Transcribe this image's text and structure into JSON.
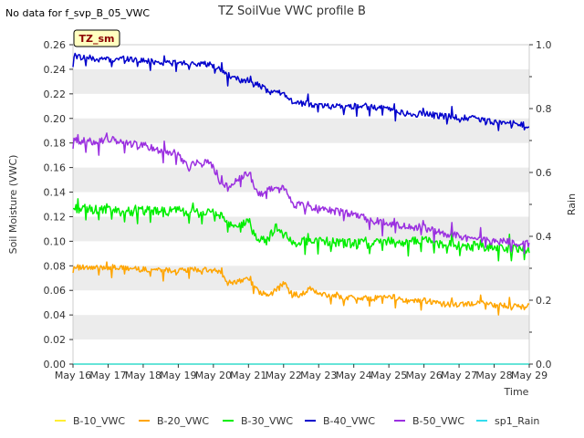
{
  "header": {
    "title": "TZ SoilVue VWC profile B",
    "no_data_note": "No data for f_svp_B_05_VWC",
    "site_badge": "TZ_sm"
  },
  "colors": {
    "B-10_VWC": "#ffee33",
    "B-20_VWC": "#ffa500",
    "B-30_VWC": "#00ee00",
    "B-40_VWC": "#0000cc",
    "B-50_VWC": "#9b30e0",
    "sp1_Rain": "#33ddee",
    "band": "#ececec",
    "badge_bg": "#ffffc0",
    "badge_text": "#8b0000"
  },
  "chart_data": {
    "type": "line",
    "title": "TZ SoilVue VWC profile B",
    "xlabel": "Time",
    "ylabel": "Soil Moisture (VWC)",
    "y2label": "Rain",
    "xlim": [
      0,
      13
    ],
    "ylim": [
      0.0,
      0.26
    ],
    "y2lim": [
      0.0,
      1.0
    ],
    "grid": "alternating horizontal bands",
    "legend_position": "bottom",
    "x_tick_labels": [
      "May 16",
      "May 17",
      "May 18",
      "May 19",
      "May 20",
      "May 21",
      "May 22",
      "May 23",
      "May 24",
      "May 25",
      "May 26",
      "May 27",
      "May 28",
      "May 29"
    ],
    "y_ticks": [
      0.0,
      0.02,
      0.04,
      0.06,
      0.08,
      0.1,
      0.12,
      0.14,
      0.16,
      0.18,
      0.2,
      0.22,
      0.24,
      0.26
    ],
    "y_tick_labels": [
      "0.00",
      "0.02",
      "0.04",
      "0.06",
      "0.08",
      "0.10",
      "0.12",
      "0.14",
      "0.16",
      "0.18",
      "0.20",
      "0.22",
      "0.24",
      "0.26"
    ],
    "y2_ticks": [
      0.0,
      0.2,
      0.4,
      0.6,
      0.8,
      1.0
    ],
    "y2_tick_labels": [
      "0.0",
      "0.2",
      "0.4",
      "0.6",
      "0.8",
      "1.0"
    ],
    "series": [
      {
        "name": "B-10_VWC",
        "axis": "left",
        "x": [
          0,
          13
        ],
        "y": [
          0.0,
          0.0
        ]
      },
      {
        "name": "B-20_VWC",
        "axis": "left",
        "x": [
          0,
          0.5,
          1,
          1.5,
          2,
          2.5,
          3,
          3.5,
          4,
          4.2,
          4.4,
          4.8,
          5,
          5.3,
          5.6,
          6,
          6.2,
          6.5,
          6.8,
          7,
          7.5,
          8,
          8.5,
          9,
          9.3,
          9.6,
          10,
          10.5,
          11,
          11.5,
          12,
          12.5,
          13
        ],
        "y": [
          0.079,
          0.078,
          0.079,
          0.078,
          0.077,
          0.077,
          0.076,
          0.077,
          0.076,
          0.075,
          0.066,
          0.068,
          0.07,
          0.058,
          0.056,
          0.066,
          0.058,
          0.056,
          0.062,
          0.057,
          0.055,
          0.054,
          0.053,
          0.056,
          0.053,
          0.051,
          0.052,
          0.049,
          0.048,
          0.05,
          0.048,
          0.047,
          0.047
        ]
      },
      {
        "name": "B-30_VWC",
        "axis": "left",
        "x": [
          0,
          0.5,
          1,
          1.5,
          2,
          2.5,
          3,
          3.5,
          4,
          4.3,
          4.6,
          5,
          5.2,
          5.5,
          5.8,
          6,
          6.3,
          6.6,
          7,
          7.5,
          8,
          8.5,
          9,
          9.5,
          10,
          10.5,
          11,
          11.5,
          12,
          12.5,
          13
        ],
        "y": [
          0.127,
          0.126,
          0.125,
          0.124,
          0.125,
          0.124,
          0.125,
          0.123,
          0.124,
          0.118,
          0.11,
          0.117,
          0.103,
          0.1,
          0.112,
          0.105,
          0.099,
          0.1,
          0.101,
          0.099,
          0.098,
          0.098,
          0.101,
          0.098,
          0.102,
          0.097,
          0.097,
          0.096,
          0.095,
          0.094,
          0.094
        ]
      },
      {
        "name": "B-40_VWC",
        "axis": "left",
        "x": [
          0,
          0.5,
          1,
          1.5,
          2,
          2.5,
          3,
          3.5,
          4,
          4.3,
          4.6,
          5,
          5.3,
          5.6,
          6,
          6.3,
          6.6,
          7,
          7.5,
          8,
          8.5,
          9,
          9.3,
          9.6,
          10,
          10.5,
          11,
          11.5,
          12,
          12.5,
          13
        ],
        "y": [
          0.251,
          0.249,
          0.248,
          0.249,
          0.247,
          0.246,
          0.245,
          0.245,
          0.243,
          0.238,
          0.232,
          0.231,
          0.227,
          0.221,
          0.221,
          0.213,
          0.212,
          0.211,
          0.21,
          0.21,
          0.209,
          0.208,
          0.205,
          0.203,
          0.204,
          0.202,
          0.201,
          0.2,
          0.197,
          0.196,
          0.194
        ]
      },
      {
        "name": "B-50_VWC",
        "axis": "left",
        "x": [
          0,
          0.5,
          1,
          1.5,
          2,
          2.5,
          3,
          3.3,
          3.6,
          4,
          4.2,
          4.4,
          4.7,
          5,
          5.3,
          5.6,
          6,
          6.3,
          6.6,
          7,
          7.5,
          8,
          8.5,
          9,
          9.5,
          10,
          10.5,
          11,
          11.5,
          12,
          12.5,
          13
        ],
        "y": [
          0.182,
          0.181,
          0.183,
          0.18,
          0.178,
          0.174,
          0.171,
          0.16,
          0.166,
          0.162,
          0.148,
          0.144,
          0.15,
          0.155,
          0.138,
          0.143,
          0.143,
          0.13,
          0.129,
          0.127,
          0.124,
          0.122,
          0.117,
          0.115,
          0.112,
          0.111,
          0.107,
          0.104,
          0.101,
          0.1,
          0.099,
          0.098
        ]
      },
      {
        "name": "sp1_Rain",
        "axis": "right",
        "x": [
          0,
          13
        ],
        "y": [
          0.0,
          0.0
        ]
      }
    ]
  }
}
